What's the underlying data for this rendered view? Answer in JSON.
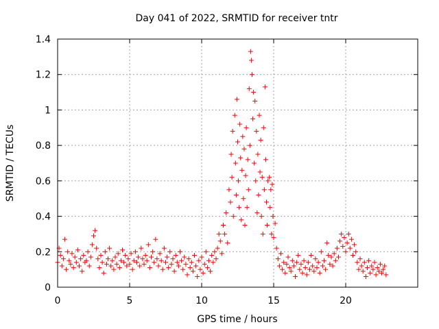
{
  "chart_data": {
    "type": "scatter",
    "title": "Day 041 of 2022, SRMTID for receiver tntr",
    "xlabel": "GPS time / hours",
    "ylabel": "SRMTID / TECUs",
    "xlim": [
      0,
      25
    ],
    "ylim": [
      0,
      1.4
    ],
    "xticks": [
      0,
      5,
      10,
      15,
      20
    ],
    "xtick_labels": [
      "0",
      "5",
      "10",
      "15",
      "20"
    ],
    "yticks": [
      0,
      0.2,
      0.4,
      0.6,
      0.8,
      1.0,
      1.2,
      1.4
    ],
    "ytick_labels": [
      "0",
      "0.2",
      "0.4",
      "0.6",
      "0.8",
      "1",
      "1.2",
      "1.4"
    ],
    "grid": true,
    "marker": "+",
    "color": "#ff0000",
    "series": [
      {
        "name": "SRMTID",
        "points": [
          [
            0.0,
            0.14
          ],
          [
            0.1,
            0.22
          ],
          [
            0.2,
            0.18
          ],
          [
            0.3,
            0.12
          ],
          [
            0.4,
            0.16
          ],
          [
            0.5,
            0.27
          ],
          [
            0.6,
            0.1
          ],
          [
            0.7,
            0.2
          ],
          [
            0.8,
            0.15
          ],
          [
            0.9,
            0.13
          ],
          [
            1.0,
            0.19
          ],
          [
            1.1,
            0.11
          ],
          [
            1.2,
            0.17
          ],
          [
            1.3,
            0.14
          ],
          [
            1.4,
            0.21
          ],
          [
            1.5,
            0.12
          ],
          [
            1.6,
            0.16
          ],
          [
            1.7,
            0.09
          ],
          [
            1.8,
            0.18
          ],
          [
            1.9,
            0.14
          ],
          [
            2.0,
            0.15
          ],
          [
            2.1,
            0.2
          ],
          [
            2.2,
            0.12
          ],
          [
            2.3,
            0.17
          ],
          [
            2.4,
            0.24
          ],
          [
            2.5,
            0.29
          ],
          [
            2.6,
            0.32
          ],
          [
            2.7,
            0.22
          ],
          [
            2.8,
            0.16
          ],
          [
            2.9,
            0.11
          ],
          [
            3.0,
            0.18
          ],
          [
            3.1,
            0.14
          ],
          [
            3.2,
            0.08
          ],
          [
            3.3,
            0.2
          ],
          [
            3.4,
            0.13
          ],
          [
            3.5,
            0.16
          ],
          [
            3.6,
            0.22
          ],
          [
            3.7,
            0.12
          ],
          [
            3.8,
            0.15
          ],
          [
            3.9,
            0.1
          ],
          [
            4.0,
            0.17
          ],
          [
            4.1,
            0.13
          ],
          [
            4.2,
            0.19
          ],
          [
            4.3,
            0.11
          ],
          [
            4.4,
            0.15
          ],
          [
            4.5,
            0.21
          ],
          [
            4.6,
            0.14
          ],
          [
            4.7,
            0.18
          ],
          [
            4.8,
            0.12
          ],
          [
            4.9,
            0.16
          ],
          [
            5.0,
            0.13
          ],
          [
            5.1,
            0.19
          ],
          [
            5.2,
            0.1
          ],
          [
            5.3,
            0.15
          ],
          [
            5.4,
            0.2
          ],
          [
            5.5,
            0.14
          ],
          [
            5.6,
            0.17
          ],
          [
            5.7,
            0.12
          ],
          [
            5.8,
            0.22
          ],
          [
            5.9,
            0.16
          ],
          [
            6.0,
            0.13
          ],
          [
            6.1,
            0.18
          ],
          [
            6.2,
            0.15
          ],
          [
            6.3,
            0.24
          ],
          [
            6.4,
            0.11
          ],
          [
            6.5,
            0.17
          ],
          [
            6.6,
            0.2
          ],
          [
            6.7,
            0.14
          ],
          [
            6.8,
            0.27
          ],
          [
            6.9,
            0.16
          ],
          [
            7.0,
            0.12
          ],
          [
            7.1,
            0.19
          ],
          [
            7.2,
            0.15
          ],
          [
            7.3,
            0.1
          ],
          [
            7.4,
            0.22
          ],
          [
            7.5,
            0.14
          ],
          [
            7.6,
            0.17
          ],
          [
            7.7,
            0.11
          ],
          [
            7.8,
            0.2
          ],
          [
            7.9,
            0.13
          ],
          [
            8.0,
            0.16
          ],
          [
            8.1,
            0.09
          ],
          [
            8.2,
            0.18
          ],
          [
            8.3,
            0.14
          ],
          [
            8.4,
            0.12
          ],
          [
            8.5,
            0.2
          ],
          [
            8.6,
            0.15
          ],
          [
            8.7,
            0.1
          ],
          [
            8.8,
            0.17
          ],
          [
            8.9,
            0.13
          ],
          [
            9.0,
            0.07
          ],
          [
            9.1,
            0.16
          ],
          [
            9.2,
            0.11
          ],
          [
            9.3,
            0.14
          ],
          [
            9.4,
            0.09
          ],
          [
            9.5,
            0.18
          ],
          [
            9.6,
            0.12
          ],
          [
            9.7,
            0.06
          ],
          [
            9.8,
            0.15
          ],
          [
            9.9,
            0.1
          ],
          [
            10.0,
            0.17
          ],
          [
            10.1,
            0.08
          ],
          [
            10.2,
            0.13
          ],
          [
            10.3,
            0.2
          ],
          [
            10.4,
            0.11
          ],
          [
            10.5,
            0.15
          ],
          [
            10.6,
            0.09
          ],
          [
            10.7,
            0.18
          ],
          [
            10.8,
            0.14
          ],
          [
            10.9,
            0.2
          ],
          [
            11.0,
            0.16
          ],
          [
            11.1,
            0.22
          ],
          [
            11.2,
            0.3
          ],
          [
            11.3,
            0.26
          ],
          [
            11.4,
            0.19
          ],
          [
            11.5,
            0.35
          ],
          [
            11.6,
            0.3
          ],
          [
            11.7,
            0.42
          ],
          [
            11.8,
            0.25
          ],
          [
            11.9,
            0.55
          ],
          [
            12.0,
            0.48
          ],
          [
            12.05,
            0.75
          ],
          [
            12.1,
            0.62
          ],
          [
            12.15,
            0.88
          ],
          [
            12.2,
            0.4
          ],
          [
            12.3,
            0.97
          ],
          [
            12.35,
            0.7
          ],
          [
            12.4,
            0.52
          ],
          [
            12.45,
            1.06
          ],
          [
            12.5,
            0.82
          ],
          [
            12.55,
            0.6
          ],
          [
            12.6,
            0.45
          ],
          [
            12.65,
            0.92
          ],
          [
            12.7,
            0.73
          ],
          [
            12.75,
            0.38
          ],
          [
            12.8,
            0.66
          ],
          [
            12.85,
            0.85
          ],
          [
            12.9,
            0.5
          ],
          [
            12.95,
            0.78
          ],
          [
            13.0,
            0.35
          ],
          [
            13.05,
            0.63
          ],
          [
            13.1,
            0.9
          ],
          [
            13.15,
            0.45
          ],
          [
            13.2,
            0.72
          ],
          [
            13.25,
            0.55
          ],
          [
            13.3,
            1.12
          ],
          [
            13.35,
            0.8
          ],
          [
            13.4,
            1.33
          ],
          [
            13.45,
            1.28
          ],
          [
            13.5,
            1.2
          ],
          [
            13.55,
            0.95
          ],
          [
            13.6,
            1.1
          ],
          [
            13.65,
            0.7
          ],
          [
            13.7,
            1.05
          ],
          [
            13.75,
            0.6
          ],
          [
            13.8,
            0.88
          ],
          [
            13.85,
            0.42
          ],
          [
            13.9,
            0.75
          ],
          [
            13.95,
            0.52
          ],
          [
            14.0,
            0.97
          ],
          [
            14.05,
            0.65
          ],
          [
            14.1,
            0.83
          ],
          [
            14.15,
            0.4
          ],
          [
            14.2,
            0.62
          ],
          [
            14.25,
            0.3
          ],
          [
            14.3,
            0.9
          ],
          [
            14.35,
            0.55
          ],
          [
            14.4,
            1.13
          ],
          [
            14.45,
            0.72
          ],
          [
            14.5,
            0.48
          ],
          [
            14.55,
            0.35
          ],
          [
            14.6,
            0.6
          ],
          [
            14.7,
            0.62
          ],
          [
            14.75,
            0.45
          ],
          [
            14.8,
            0.55
          ],
          [
            14.85,
            0.3
          ],
          [
            14.9,
            0.58
          ],
          [
            14.95,
            0.4
          ],
          [
            15.0,
            0.28
          ],
          [
            15.1,
            0.36
          ],
          [
            15.2,
            0.22
          ],
          [
            15.3,
            0.16
          ],
          [
            15.4,
            0.12
          ],
          [
            15.5,
            0.19
          ],
          [
            15.6,
            0.1
          ],
          [
            15.7,
            0.14
          ],
          [
            15.8,
            0.08
          ],
          [
            15.9,
            0.13
          ],
          [
            16.0,
            0.17
          ],
          [
            16.1,
            0.11
          ],
          [
            16.2,
            0.09
          ],
          [
            16.3,
            0.15
          ],
          [
            16.4,
            0.12
          ],
          [
            16.5,
            0.06
          ],
          [
            16.6,
            0.14
          ],
          [
            16.7,
            0.18
          ],
          [
            16.8,
            0.1
          ],
          [
            16.9,
            0.13
          ],
          [
            17.0,
            0.08
          ],
          [
            17.1,
            0.15
          ],
          [
            17.2,
            0.11
          ],
          [
            17.3,
            0.07
          ],
          [
            17.4,
            0.14
          ],
          [
            17.5,
            0.1
          ],
          [
            17.6,
            0.18
          ],
          [
            17.7,
            0.12
          ],
          [
            17.8,
            0.09
          ],
          [
            17.9,
            0.16
          ],
          [
            18.0,
            0.11
          ],
          [
            18.1,
            0.14
          ],
          [
            18.2,
            0.08
          ],
          [
            18.3,
            0.2
          ],
          [
            18.4,
            0.12
          ],
          [
            18.5,
            0.15
          ],
          [
            18.6,
            0.1
          ],
          [
            18.7,
            0.25
          ],
          [
            18.8,
            0.18
          ],
          [
            18.9,
            0.13
          ],
          [
            19.0,
            0.17
          ],
          [
            19.1,
            0.12
          ],
          [
            19.2,
            0.19
          ],
          [
            19.3,
            0.15
          ],
          [
            19.4,
            0.22
          ],
          [
            19.5,
            0.17
          ],
          [
            19.6,
            0.26
          ],
          [
            19.7,
            0.3
          ],
          [
            19.8,
            0.23
          ],
          [
            19.9,
            0.28
          ],
          [
            20.0,
            0.2
          ],
          [
            20.1,
            0.25
          ],
          [
            20.2,
            0.3
          ],
          [
            20.3,
            0.22
          ],
          [
            20.4,
            0.27
          ],
          [
            20.5,
            0.18
          ],
          [
            20.6,
            0.24
          ],
          [
            20.7,
            0.2
          ],
          [
            20.8,
            0.14
          ],
          [
            20.9,
            0.1
          ],
          [
            21.0,
            0.16
          ],
          [
            21.1,
            0.12
          ],
          [
            21.2,
            0.09
          ],
          [
            21.3,
            0.14
          ],
          [
            21.4,
            0.06
          ],
          [
            21.5,
            0.11
          ],
          [
            21.6,
            0.15
          ],
          [
            21.7,
            0.08
          ],
          [
            21.8,
            0.12
          ],
          [
            21.9,
            0.1
          ],
          [
            22.0,
            0.14
          ],
          [
            22.1,
            0.07
          ],
          [
            22.2,
            0.11
          ],
          [
            22.3,
            0.09
          ],
          [
            22.4,
            0.13
          ],
          [
            22.5,
            0.08
          ],
          [
            22.6,
            0.1
          ],
          [
            22.7,
            0.12
          ],
          [
            22.8,
            0.07
          ]
        ]
      }
    ]
  }
}
